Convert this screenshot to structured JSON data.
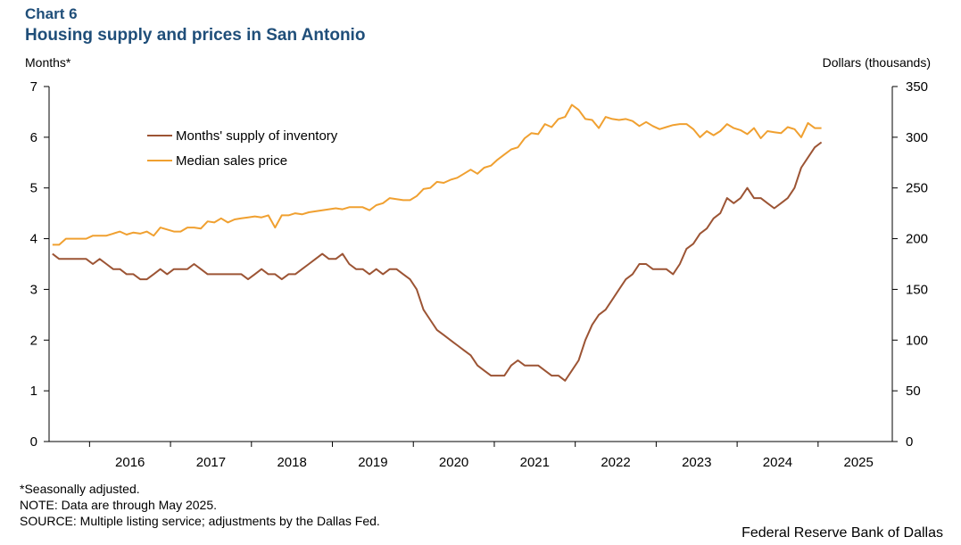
{
  "header": {
    "chart_label": "Chart 6",
    "title": "Housing supply and prices in San Antonio"
  },
  "notes": {
    "seasonal": "*Seasonally adjusted.",
    "note": "NOTE: Data are through  May 2025.",
    "source": "SOURCE: Multiple listing service; adjustments  by the Dallas Fed."
  },
  "credit": "Federal Reserve Bank of Dallas",
  "colors": {
    "inventory": "#9c5434",
    "price": "#f0a030"
  },
  "chart_data": {
    "type": "line",
    "title": "Housing supply and prices in San Antonio",
    "x_start": "2015-07",
    "x_end": "2025-05",
    "x_tick_labels": [
      "2016",
      "2017",
      "2018",
      "2019",
      "2020",
      "2021",
      "2022",
      "2023",
      "2024",
      "2025"
    ],
    "left_axis": {
      "label": "Months*",
      "ylim": [
        0,
        7
      ],
      "ticks": [
        "0",
        "1",
        "2",
        "3",
        "4",
        "5",
        "6",
        "7"
      ]
    },
    "right_axis": {
      "label": "Dollars  (thousands)",
      "ylim": [
        0,
        350
      ],
      "ticks": [
        "0",
        "50",
        "100",
        "150",
        "200",
        "250",
        "300",
        "350"
      ]
    },
    "legend": {
      "position": "top-left"
    },
    "series": [
      {
        "name": "Months' supply of inventory",
        "axis": "left",
        "values": [
          3.7,
          3.6,
          3.6,
          3.6,
          3.6,
          3.6,
          3.5,
          3.6,
          3.5,
          3.4,
          3.4,
          3.3,
          3.3,
          3.2,
          3.2,
          3.3,
          3.4,
          3.3,
          3.4,
          3.4,
          3.4,
          3.5,
          3.4,
          3.3,
          3.3,
          3.3,
          3.3,
          3.3,
          3.3,
          3.2,
          3.3,
          3.4,
          3.3,
          3.3,
          3.2,
          3.3,
          3.3,
          3.4,
          3.5,
          3.6,
          3.7,
          3.6,
          3.6,
          3.7,
          3.5,
          3.4,
          3.4,
          3.3,
          3.4,
          3.3,
          3.4,
          3.4,
          3.3,
          3.2,
          3.0,
          2.6,
          2.4,
          2.2,
          2.1,
          2.0,
          1.9,
          1.8,
          1.7,
          1.5,
          1.4,
          1.3,
          1.3,
          1.3,
          1.5,
          1.6,
          1.5,
          1.5,
          1.5,
          1.4,
          1.3,
          1.3,
          1.2,
          1.4,
          1.6,
          2.0,
          2.3,
          2.5,
          2.6,
          2.8,
          3.0,
          3.2,
          3.3,
          3.5,
          3.5,
          3.4,
          3.4,
          3.4,
          3.3,
          3.5,
          3.8,
          3.9,
          4.1,
          4.2,
          4.4,
          4.5,
          4.8,
          4.7,
          4.8,
          5.0,
          4.8,
          4.8,
          4.7,
          4.6,
          4.7,
          4.8,
          5.0,
          5.4,
          5.6,
          5.8,
          5.9
        ]
      },
      {
        "name": "Median sales price",
        "axis": "right",
        "values": [
          194,
          194,
          200,
          200,
          200,
          200,
          203,
          203,
          203,
          205,
          207,
          204,
          206,
          205,
          207,
          203,
          211,
          209,
          207,
          207,
          211,
          211,
          210,
          217,
          216,
          220,
          216,
          219,
          220,
          221,
          222,
          221,
          223,
          211,
          223,
          223,
          225,
          224,
          226,
          227,
          228,
          229,
          230,
          229,
          231,
          231,
          231,
          228,
          233,
          235,
          240,
          239,
          238,
          238,
          242,
          249,
          250,
          256,
          255,
          258,
          260,
          264,
          268,
          264,
          270,
          272,
          278,
          283,
          288,
          290,
          299,
          304,
          303,
          313,
          310,
          318,
          320,
          332,
          327,
          318,
          317,
          309,
          320,
          318,
          317,
          318,
          316,
          311,
          315,
          311,
          308,
          310,
          312,
          313,
          313,
          308,
          300,
          306,
          302,
          306,
          313,
          309,
          307,
          303,
          309,
          299,
          306,
          305,
          304,
          310,
          308,
          300,
          314,
          309,
          309
        ]
      }
    ]
  }
}
